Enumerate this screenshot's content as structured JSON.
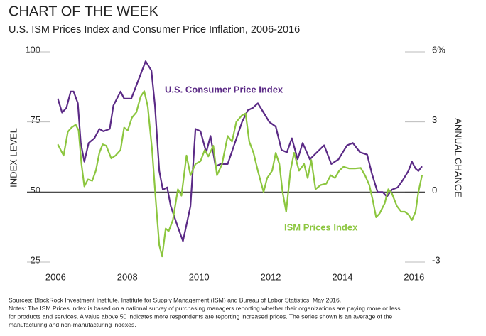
{
  "chart_data": {
    "type": "line",
    "title": "CHART OF THE WEEK",
    "subtitle": "U.S. ISM Prices Index and Consumer Price Inflation, 2006-2016",
    "y_label": "INDEX LEVEL",
    "y2_label": "ANNUAL CHANGE",
    "xlim": [
      2005.2,
      2016.3
    ],
    "xticks": [
      2006,
      2008,
      2010,
      2012,
      2014,
      2016
    ],
    "ylim": [
      25,
      100
    ],
    "yticks": [
      25,
      50,
      75,
      100
    ],
    "y2lim": [
      -3,
      6
    ],
    "y2ticks": [
      -3,
      0,
      3,
      {
        "value": 6,
        "label": "6%"
      }
    ],
    "baseline": 50,
    "series": [
      {
        "name": "U.S. Consumer Price Index",
        "color": "#5b2a86",
        "axis": "y2",
        "x": [
          2006.06,
          2006.18,
          2006.3,
          2006.42,
          2006.5,
          2006.62,
          2006.7,
          2006.8,
          2006.92,
          2007.08,
          2007.22,
          2007.33,
          2007.51,
          2007.61,
          2007.81,
          2007.91,
          2008.11,
          2008.51,
          2008.67,
          2008.77,
          2008.89,
          2008.99,
          2009.11,
          2009.21,
          2009.41,
          2009.55,
          2009.65,
          2009.76,
          2009.9,
          2010.04,
          2010.2,
          2010.32,
          2010.46,
          2010.6,
          2010.8,
          2011.0,
          2011.2,
          2011.36,
          2011.5,
          2011.64,
          2011.8,
          2011.96,
          2012.14,
          2012.3,
          2012.45,
          2012.59,
          2012.75,
          2012.89,
          2013.09,
          2013.29,
          2013.49,
          2013.69,
          2013.89,
          2014.13,
          2014.29,
          2014.49,
          2014.69,
          2014.82,
          2014.98,
          2015.12,
          2015.24,
          2015.38,
          2015.54,
          2015.68,
          2015.84,
          2015.94,
          2016.04,
          2016.12,
          2016.22
        ],
        "values": [
          4.0,
          3.4,
          3.6,
          4.3,
          4.3,
          3.8,
          2.1,
          1.3,
          2.1,
          2.3,
          2.7,
          2.6,
          2.7,
          3.7,
          4.3,
          4.0,
          4.0,
          5.6,
          5.2,
          3.7,
          0.9,
          0.1,
          0.2,
          -0.6,
          -1.5,
          -2.1,
          -1.4,
          -0.6,
          2.7,
          2.6,
          1.7,
          2.4,
          1.1,
          1.2,
          1.2,
          2.1,
          3.0,
          3.5,
          3.6,
          3.8,
          3.4,
          3.0,
          2.8,
          1.8,
          1.7,
          2.3,
          1.4,
          2.1,
          1.4,
          1.7,
          2.0,
          1.2,
          1.4,
          2.0,
          2.1,
          1.7,
          1.6,
          0.8,
          0.0,
          0.0,
          -0.2,
          0.1,
          0.2,
          0.5,
          0.9,
          1.3,
          1.0,
          0.9,
          1.1
        ]
      },
      {
        "name": "ISM Prices Index",
        "color": "#8cc63f",
        "x": [
          2006.06,
          2006.22,
          2006.34,
          2006.44,
          2006.56,
          2006.64,
          2006.72,
          2006.8,
          2006.9,
          2007.02,
          2007.12,
          2007.22,
          2007.31,
          2007.41,
          2007.55,
          2007.67,
          2007.81,
          2007.91,
          2008.01,
          2008.13,
          2008.25,
          2008.37,
          2008.47,
          2008.57,
          2008.69,
          2008.79,
          2008.89,
          2008.97,
          2009.07,
          2009.15,
          2009.27,
          2009.41,
          2009.51,
          2009.65,
          2009.76,
          2009.9,
          2010.04,
          2010.16,
          2010.26,
          2010.4,
          2010.5,
          2010.64,
          2010.8,
          2010.92,
          2011.04,
          2011.2,
          2011.3,
          2011.4,
          2011.52,
          2011.64,
          2011.8,
          2011.9,
          2012.04,
          2012.14,
          2012.24,
          2012.33,
          2012.43,
          2012.55,
          2012.65,
          2012.79,
          2012.93,
          2013.03,
          2013.13,
          2013.25,
          2013.39,
          2013.55,
          2013.67,
          2013.79,
          2013.91,
          2014.03,
          2014.19,
          2014.35,
          2014.51,
          2014.63,
          2014.75,
          2014.84,
          2014.94,
          2015.04,
          2015.18,
          2015.28,
          2015.38,
          2015.52,
          2015.64,
          2015.74,
          2015.84,
          2015.94,
          2016.04,
          2016.12,
          2016.22
        ],
        "values": [
          67,
          63,
          71.5,
          73,
          74,
          72,
          60,
          52,
          54.5,
          54,
          57.6,
          64,
          67,
          66.5,
          62,
          63,
          65,
          73,
          72,
          76.6,
          78.4,
          84,
          86,
          80.5,
          65,
          47.5,
          31,
          27,
          37,
          36,
          40,
          51,
          48.7,
          63,
          56,
          60,
          61,
          65,
          62.7,
          66.5,
          56,
          60,
          70,
          68,
          75,
          77.4,
          78,
          68,
          64,
          57.6,
          50,
          55,
          57.6,
          64,
          60,
          50,
          43,
          57.6,
          64,
          57.6,
          60,
          55,
          61.4,
          51,
          52.5,
          53,
          56,
          55,
          57.6,
          59,
          58.4,
          58.4,
          58.6,
          56,
          52.5,
          47.5,
          41,
          42.4,
          46,
          51,
          49.5,
          45,
          43,
          43,
          42,
          40,
          43,
          50,
          56
        ]
      }
    ],
    "notes": [
      "Sources: BlackRock Investment Institute, Institute for Supply Management (ISM) and Bureau of Labor Statistics, May 2016.",
      "Notes: The ISM Prices Index is based on a national survey of purchasing managers reporting whether their organizations are paying more or less",
      "for products and services. A value above 50 indicates more respondents are reporting increased prices. The series shown is an average of the",
      "manufacturing and non-manufacturing indexes."
    ]
  }
}
